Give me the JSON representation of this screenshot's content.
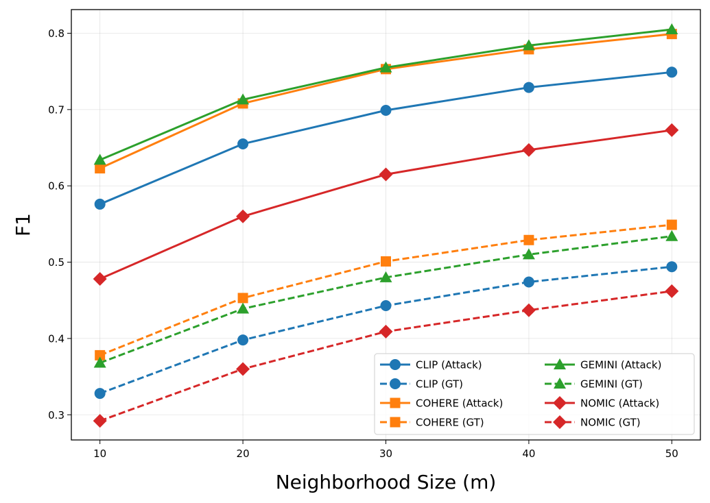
{
  "chart_data": {
    "type": "line",
    "title": "",
    "xlabel": "Neighborhood Size (m)",
    "ylabel": "F1",
    "x": [
      10,
      20,
      30,
      40,
      50
    ],
    "xlim": [
      8,
      52
    ],
    "ylim": [
      0.267,
      0.831
    ],
    "xticks": [
      10,
      20,
      30,
      40,
      50
    ],
    "yticks": [
      0.3,
      0.4,
      0.5,
      0.6,
      0.7,
      0.8
    ],
    "grid": true,
    "legend": "lower-right, 2 columns",
    "series": [
      {
        "name": "CLIP (Attack)",
        "color": "#1f77b4",
        "dash": "solid",
        "marker": "circle",
        "values": [
          0.576,
          0.655,
          0.699,
          0.729,
          0.749
        ]
      },
      {
        "name": "CLIP (GT)",
        "color": "#1f77b4",
        "dash": "dashed",
        "marker": "circle",
        "values": [
          0.328,
          0.398,
          0.443,
          0.474,
          0.494
        ]
      },
      {
        "name": "COHERE (Attack)",
        "color": "#ff7f0e",
        "dash": "solid",
        "marker": "square",
        "values": [
          0.623,
          0.708,
          0.753,
          0.779,
          0.799
        ]
      },
      {
        "name": "COHERE (GT)",
        "color": "#ff7f0e",
        "dash": "dashed",
        "marker": "square",
        "values": [
          0.378,
          0.453,
          0.501,
          0.529,
          0.549
        ]
      },
      {
        "name": "GEMINI (Attack)",
        "color": "#2ca02c",
        "dash": "solid",
        "marker": "triangle",
        "values": [
          0.634,
          0.713,
          0.755,
          0.784,
          0.805
        ]
      },
      {
        "name": "GEMINI (GT)",
        "color": "#2ca02c",
        "dash": "dashed",
        "marker": "triangle",
        "values": [
          0.368,
          0.439,
          0.48,
          0.51,
          0.534
        ]
      },
      {
        "name": "NOMIC (Attack)",
        "color": "#d62728",
        "dash": "solid",
        "marker": "diamond",
        "values": [
          0.478,
          0.56,
          0.615,
          0.647,
          0.673
        ]
      },
      {
        "name": "NOMIC (GT)",
        "color": "#d62728",
        "dash": "dashed",
        "marker": "diamond",
        "values": [
          0.292,
          0.36,
          0.409,
          0.437,
          0.462
        ]
      }
    ]
  }
}
